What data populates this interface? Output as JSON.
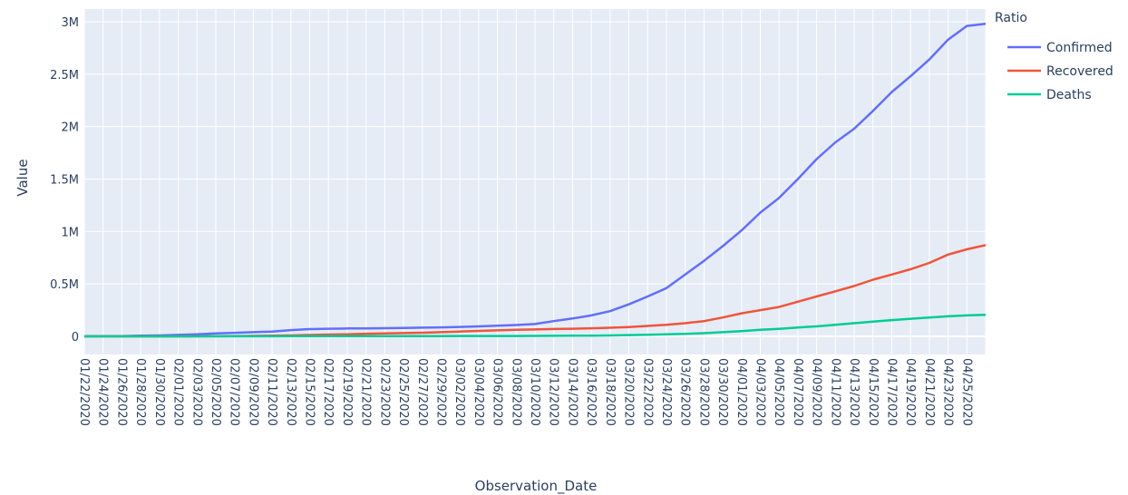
{
  "chart_data": {
    "type": "line",
    "xlabel": "Observation_Date",
    "ylabel": "Value",
    "ylim": [
      0,
      3000000
    ],
    "y_ticks": [
      0,
      500000,
      1000000,
      1500000,
      2000000,
      2500000,
      3000000
    ],
    "y_tick_labels": [
      "0",
      "0.5M",
      "1M",
      "1.5M",
      "2M",
      "2.5M",
      "3M"
    ],
    "x_tick_labels": [
      "01/22/2020",
      "01/24/2020",
      "01/26/2020",
      "01/28/2020",
      "01/30/2020",
      "02/01/2020",
      "02/03/2020",
      "02/05/2020",
      "02/07/2020",
      "02/09/2020",
      "02/11/2020",
      "02/13/2020",
      "02/15/2020",
      "02/17/2020",
      "02/19/2020",
      "02/21/2020",
      "02/23/2020",
      "02/25/2020",
      "02/27/2020",
      "02/29/2020",
      "03/02/2020",
      "03/04/2020",
      "03/06/2020",
      "03/08/2020",
      "03/10/2020",
      "03/12/2020",
      "03/14/2020",
      "03/16/2020",
      "03/18/2020",
      "03/20/2020",
      "03/22/2020",
      "03/24/2020",
      "03/26/2020",
      "03/28/2020",
      "03/30/2020",
      "04/01/2020",
      "04/03/2020",
      "04/05/2020",
      "04/07/2020",
      "04/09/2020",
      "04/11/2020",
      "04/13/2020",
      "04/15/2020",
      "04/17/2020",
      "04/19/2020",
      "04/21/2020",
      "04/23/2020",
      "04/25/2020"
    ],
    "legend_title": "Ratio",
    "legend_position": "top-right",
    "grid": true,
    "x": [
      "01/22/2020",
      "01/24/2020",
      "01/26/2020",
      "01/28/2020",
      "01/30/2020",
      "02/01/2020",
      "02/03/2020",
      "02/05/2020",
      "02/07/2020",
      "02/09/2020",
      "02/11/2020",
      "02/13/2020",
      "02/15/2020",
      "02/17/2020",
      "02/19/2020",
      "02/21/2020",
      "02/23/2020",
      "02/25/2020",
      "02/27/2020",
      "02/29/2020",
      "03/02/2020",
      "03/04/2020",
      "03/06/2020",
      "03/08/2020",
      "03/10/2020",
      "03/12/2020",
      "03/14/2020",
      "03/16/2020",
      "03/18/2020",
      "03/20/2020",
      "03/22/2020",
      "03/24/2020",
      "03/26/2020",
      "03/28/2020",
      "03/30/2020",
      "04/01/2020",
      "04/03/2020",
      "04/05/2020",
      "04/07/2020",
      "04/09/2020",
      "04/11/2020",
      "04/13/2020",
      "04/15/2020",
      "04/17/2020",
      "04/19/2020",
      "04/21/2020",
      "04/23/2020",
      "04/25/2020",
      "04/27/2020"
    ],
    "series": [
      {
        "name": "Confirmed",
        "color": "#636efa",
        "values": [
          600,
          2000,
          3000,
          6000,
          9000,
          14000,
          20000,
          28000,
          34000,
          40000,
          45000,
          60000,
          69000,
          73000,
          75000,
          76000,
          78000,
          80000,
          83000,
          86000,
          90000,
          95000,
          101000,
          108000,
          118000,
          145000,
          170000,
          200000,
          240000,
          305000,
          380000,
          460000,
          590000,
          720000,
          860000,
          1010000,
          1180000,
          1320000,
          1500000,
          1690000,
          1850000,
          1980000,
          2150000,
          2330000,
          2480000,
          2640000,
          2830000,
          2960000,
          2980000
        ]
      },
      {
        "name": "Recovered",
        "color": "#ef553b",
        "values": [
          30,
          50,
          100,
          130,
          200,
          300,
          600,
          1200,
          2500,
          4000,
          6000,
          9000,
          13000,
          17000,
          20000,
          25000,
          28000,
          31000,
          35000,
          40000,
          46000,
          52000,
          57000,
          62000,
          66000,
          70000,
          73000,
          77000,
          82000,
          89000,
          99000,
          110000,
          125000,
          145000,
          180000,
          220000,
          250000,
          280000,
          330000,
          380000,
          430000,
          480000,
          540000,
          590000,
          640000,
          700000,
          780000,
          830000,
          870000
        ]
      },
      {
        "name": "Deaths",
        "color": "#00cc96",
        "values": [
          17,
          50,
          60,
          130,
          170,
          260,
          420,
          560,
          720,
          900,
          1100,
          1400,
          1700,
          1800,
          2100,
          2300,
          2500,
          2700,
          2800,
          2900,
          3100,
          3300,
          3500,
          3800,
          4300,
          5000,
          5800,
          7100,
          8800,
          12000,
          15000,
          19000,
          24000,
          30000,
          40000,
          50000,
          62000,
          72000,
          85000,
          95000,
          110000,
          125000,
          140000,
          155000,
          168000,
          180000,
          191000,
          200000,
          206000
        ]
      }
    ]
  }
}
